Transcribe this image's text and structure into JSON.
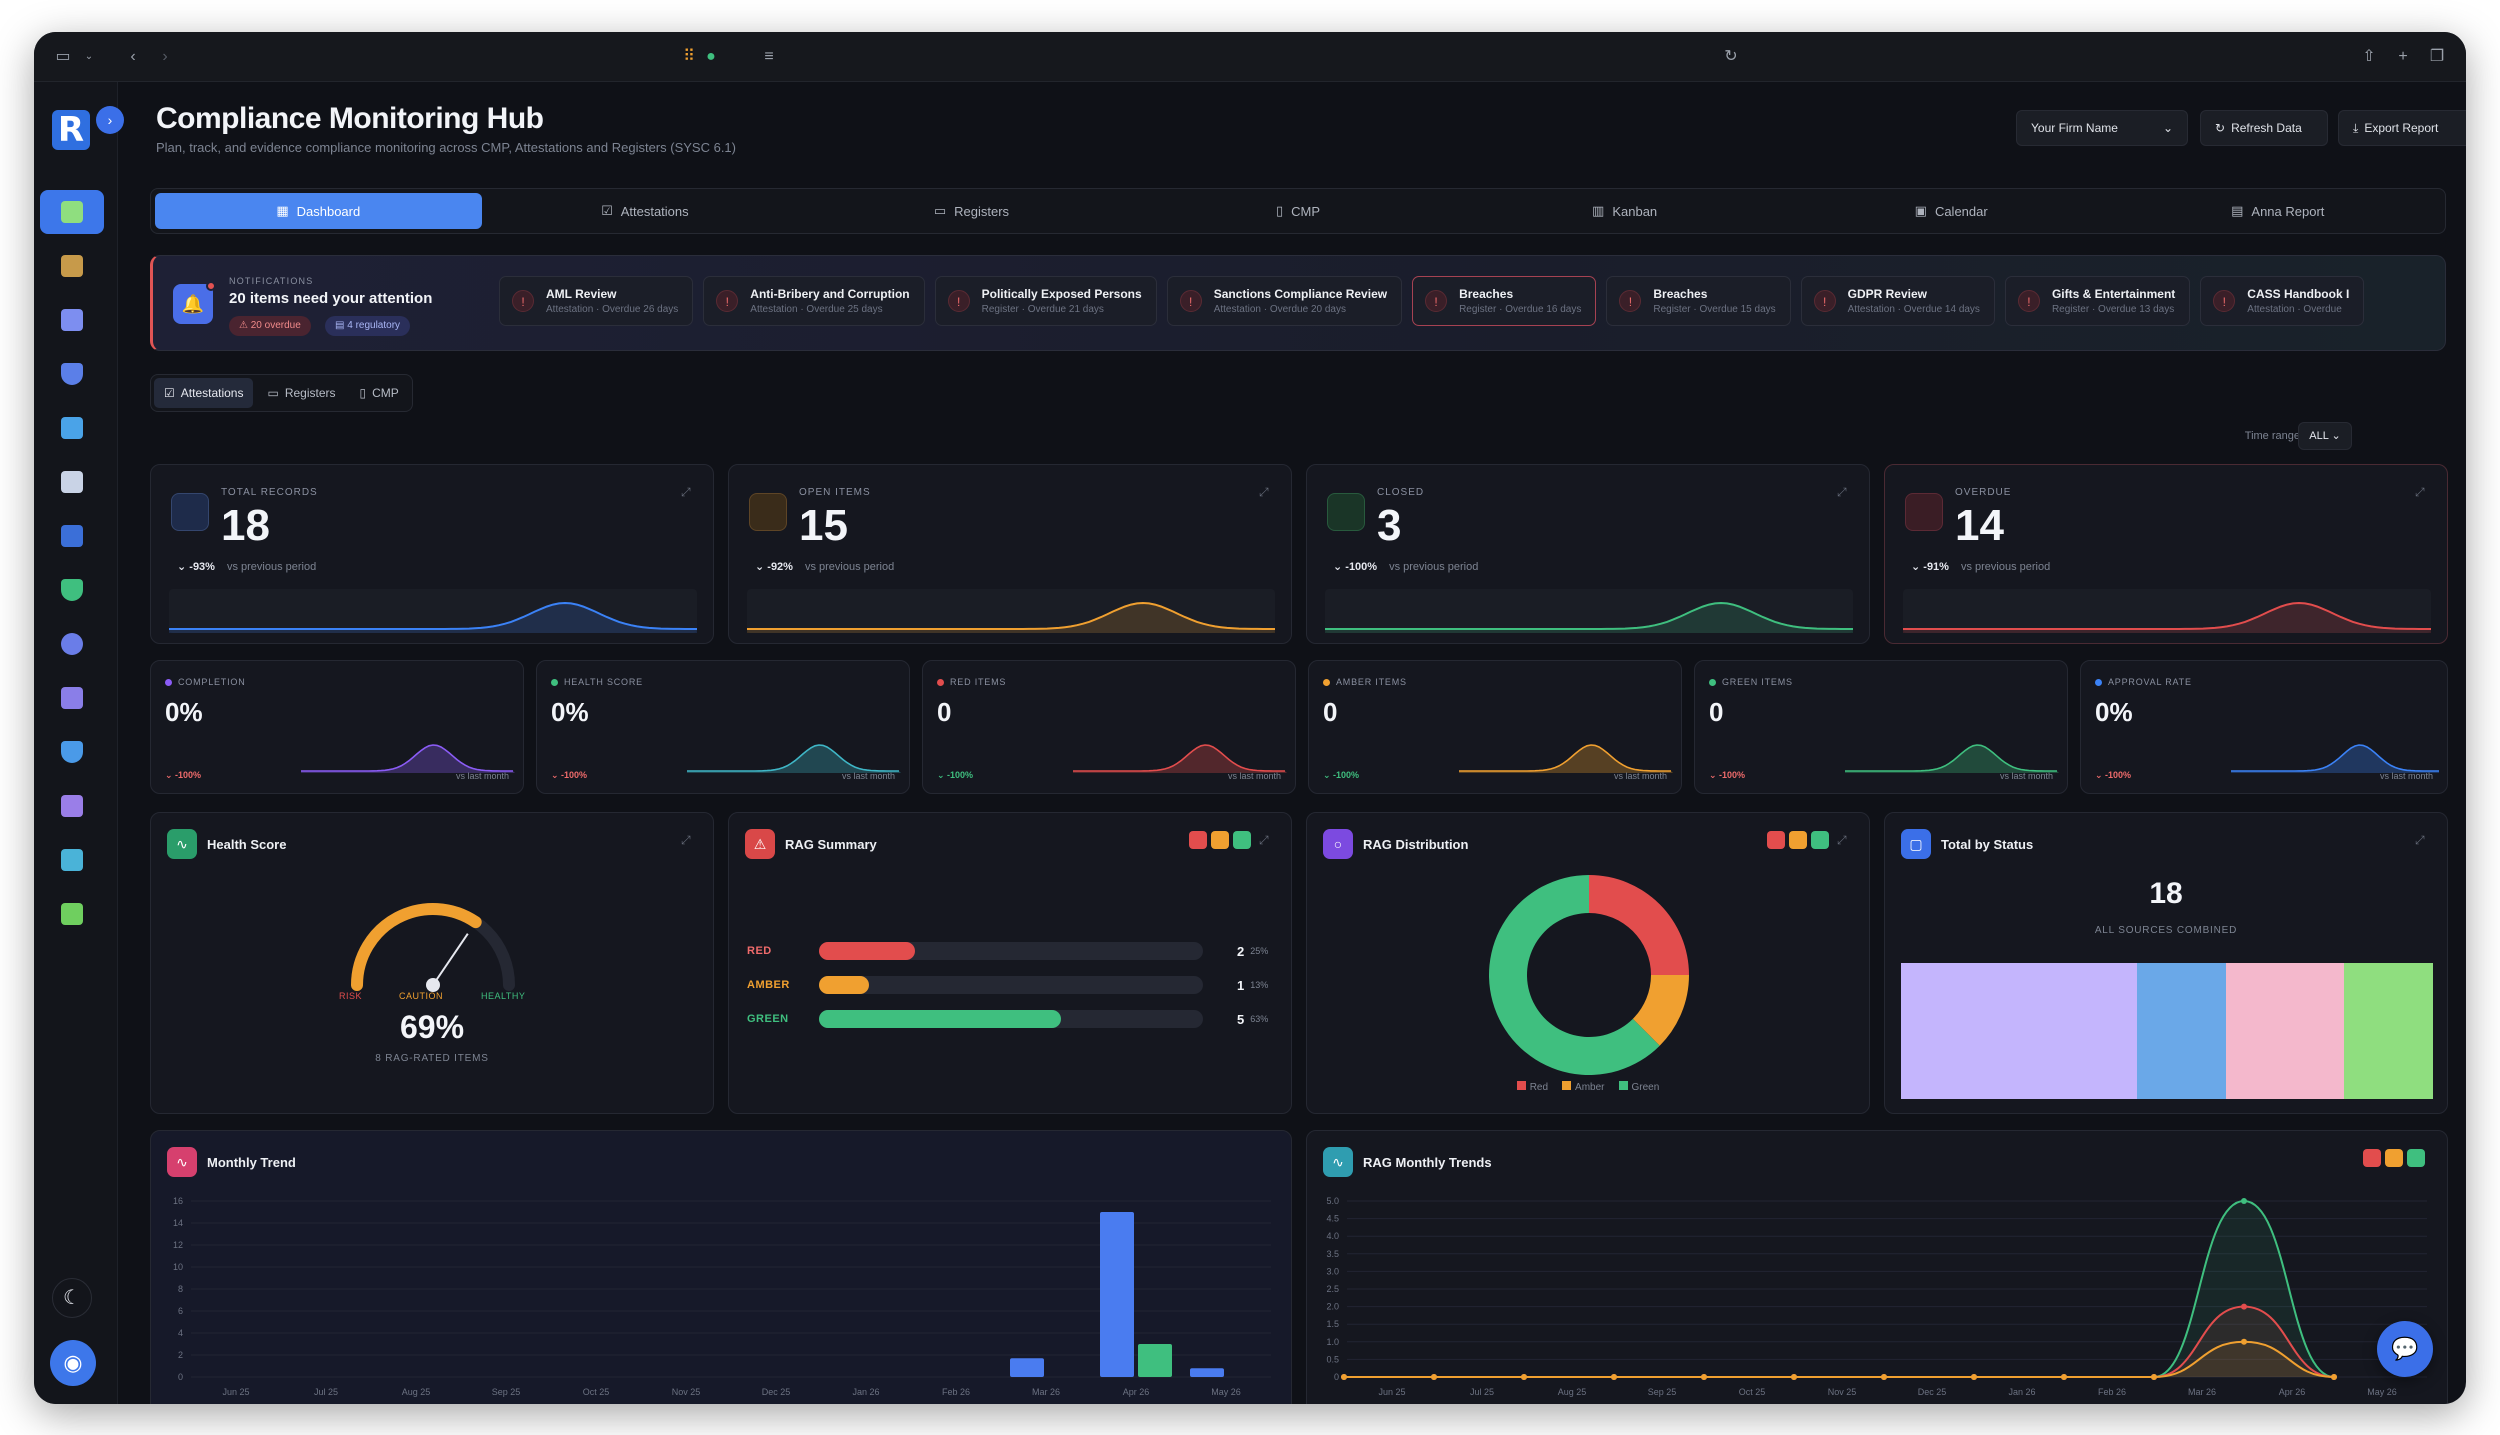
{
  "app": {
    "title": "Compliance Monitoring Hub",
    "subtitle": "Plan, track, and evidence compliance monitoring across CMP, Attestations and Registers (SYSC 6.1)",
    "logo": "R"
  },
  "header": {
    "firm_select": "Your Firm Name",
    "refresh_label": "Refresh Data",
    "export_label": "Export Report"
  },
  "tabs": [
    {
      "label": "Dashboard",
      "icon": "grid-icon"
    },
    {
      "label": "Attestations",
      "icon": "check-square-icon"
    },
    {
      "label": "Registers",
      "icon": "book-icon"
    },
    {
      "label": "CMP",
      "icon": "file-icon"
    },
    {
      "label": "Kanban",
      "icon": "kanban-icon"
    },
    {
      "label": "Calendar",
      "icon": "calendar-icon"
    },
    {
      "label": "Anna Report",
      "icon": "report-icon"
    }
  ],
  "notifications": {
    "label": "NOTIFICATIONS",
    "title": "20 items need your attention",
    "overdue_pill": "20 overdue",
    "regulatory_pill": "4 regulatory",
    "items": [
      {
        "title": "AML Review",
        "meta": "Attestation · Overdue 26 days"
      },
      {
        "title": "Anti-Bribery and Corruption",
        "meta": "Attestation · Overdue 25 days"
      },
      {
        "title": "Politically Exposed Persons",
        "meta": "Register · Overdue 21 days"
      },
      {
        "title": "Sanctions Compliance Review",
        "meta": "Attestation · Overdue 20 days"
      },
      {
        "title": "Breaches",
        "meta": "Register · Overdue 16 days"
      },
      {
        "title": "Breaches",
        "meta": "Register · Overdue 15 days"
      },
      {
        "title": "GDPR Review",
        "meta": "Attestation · Overdue 14 days"
      },
      {
        "title": "Gifts & Entertainment",
        "meta": "Register · Overdue 13 days"
      },
      {
        "title": "CASS Handbook I",
        "meta": "Attestation · Overdue"
      }
    ]
  },
  "source_filter": [
    "Attestations",
    "Registers",
    "CMP"
  ],
  "time_range": {
    "label": "Time range",
    "value": "ALL"
  },
  "kpis": [
    {
      "label": "TOTAL RECORDS",
      "value": "18",
      "change": "-93%",
      "vs": "vs previous period",
      "color": "#3b82f6"
    },
    {
      "label": "OPEN ITEMS",
      "value": "15",
      "change": "-92%",
      "vs": "vs previous period",
      "color": "#f0a030"
    },
    {
      "label": "CLOSED",
      "value": "3",
      "change": "-100%",
      "vs": "vs previous period",
      "color": "#3fbf7f"
    },
    {
      "label": "OVERDUE",
      "value": "14",
      "change": "-91%",
      "vs": "vs previous period",
      "color": "#e24d4d"
    }
  ],
  "metrics": [
    {
      "label": "COMPLETION",
      "value": "0%",
      "change": "-100%",
      "vs": "vs last month",
      "color": "#8b5cf6"
    },
    {
      "label": "HEALTH SCORE",
      "value": "0%",
      "change": "-100%",
      "vs": "vs last month",
      "color": "#3fb6c6"
    },
    {
      "label": "RED ITEMS",
      "value": "0",
      "change": "-100%",
      "vs": "vs last month",
      "color": "#e24d4d"
    },
    {
      "label": "AMBER ITEMS",
      "value": "0",
      "change": "-100%",
      "vs": "vs last month",
      "color": "#f0a030"
    },
    {
      "label": "GREEN ITEMS",
      "value": "0",
      "change": "-100%",
      "vs": "vs last month",
      "color": "#3fbf7f"
    },
    {
      "label": "APPROVAL RATE",
      "value": "0%",
      "change": "-100%",
      "vs": "vs last month",
      "color": "#3b82f6"
    }
  ],
  "health": {
    "title": "Health Score",
    "value": "69%",
    "sub": "8 RAG-RATED ITEMS",
    "risk": "RISK",
    "caution": "CAUTION",
    "healthy": "HEALTHY",
    "fraction": 0.69
  },
  "rag_summary": {
    "title": "RAG Summary",
    "rows": [
      {
        "label": "RED",
        "count": "2",
        "pct": "25%",
        "fraction": 0.25,
        "color": "#e24d4d"
      },
      {
        "label": "AMBER",
        "count": "1",
        "pct": "13%",
        "fraction": 0.13,
        "color": "#f0a030"
      },
      {
        "label": "GREEN",
        "count": "5",
        "pct": "63%",
        "fraction": 0.63,
        "color": "#3fbf7f"
      }
    ]
  },
  "rag_distribution": {
    "title": "RAG Distribution",
    "legend": [
      "Red",
      "Amber",
      "Green"
    ],
    "values": [
      2,
      1,
      5
    ],
    "colors": [
      "#e24d4d",
      "#f0a030",
      "#3fbf7f"
    ]
  },
  "total_by_status": {
    "title": "Total by Status",
    "value": "18",
    "sub": "ALL SOURCES COMBINED",
    "segments": [
      {
        "value": 8,
        "color": "#c4b5fd"
      },
      {
        "value": 3,
        "color": "#6aa8e8"
      },
      {
        "value": 4,
        "color": "#f4b8cc"
      },
      {
        "value": 3,
        "color": "#8fde7f"
      }
    ]
  },
  "monthly_trend": {
    "title": "Monthly Trend",
    "y_ticks": [
      "16",
      "14",
      "12",
      "10",
      "8",
      "6",
      "4",
      "2",
      "0"
    ]
  },
  "rag_trends": {
    "title": "RAG Monthly Trends",
    "y_ticks": [
      "5.0",
      "4.5",
      "4.0",
      "3.5",
      "3.0",
      "2.5",
      "2.0",
      "1.5",
      "1.0",
      "0.5",
      "0"
    ]
  },
  "chart_data": [
    {
      "type": "bar",
      "categories": [
        "Jun 25",
        "Jul 25",
        "Aug 25",
        "Sep 25",
        "Oct 25",
        "Nov 25",
        "Dec 25",
        "Jan 26",
        "Feb 26",
        "Mar 26",
        "Apr 26",
        "May 26"
      ],
      "series": [
        {
          "values": [
            0,
            0,
            0,
            0,
            0,
            0,
            0,
            0,
            0,
            1.7,
            15,
            0.8
          ],
          "color": "#4a7cf0"
        },
        {
          "values": [
            0,
            0,
            0,
            0,
            0,
            0,
            0,
            0,
            0,
            0,
            3,
            0
          ],
          "color": "#3fbf7f"
        }
      ],
      "ylim": [
        0,
        16
      ]
    },
    {
      "type": "line",
      "categories": [
        "Jun 25",
        "Jul 25",
        "Aug 25",
        "Sep 25",
        "Oct 25",
        "Nov 25",
        "Dec 25",
        "Jan 26",
        "Feb 26",
        "Mar 26",
        "Apr 26",
        "May 26"
      ],
      "series": [
        {
          "values": [
            0,
            0,
            0,
            0,
            0,
            0,
            0,
            0,
            0,
            0,
            5,
            0
          ],
          "color": "#3fbf7f"
        },
        {
          "values": [
            0,
            0,
            0,
            0,
            0,
            0,
            0,
            0,
            0,
            0,
            2,
            0
          ],
          "color": "#e24d4d"
        },
        {
          "values": [
            0,
            0,
            0,
            0,
            0,
            0,
            0,
            0,
            0,
            0,
            1,
            0
          ],
          "color": "#f0a030"
        }
      ],
      "ylim": [
        0,
        5
      ]
    }
  ]
}
